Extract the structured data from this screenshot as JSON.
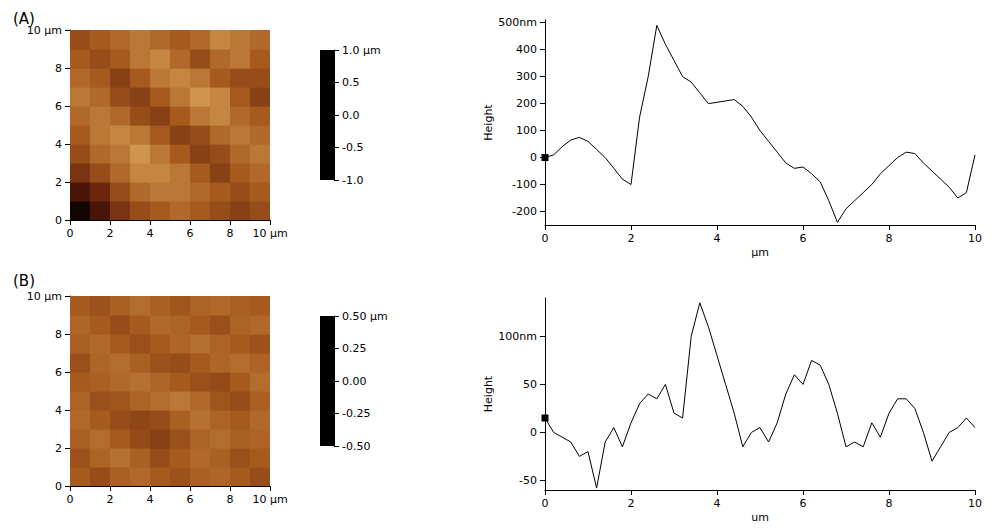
{
  "chart_data": [
    {
      "type": "heatmap",
      "title": "(A)",
      "x": [
        0,
        1,
        2,
        3,
        4,
        5,
        6,
        7,
        8,
        9,
        10
      ],
      "y": [
        0,
        1,
        2,
        3,
        4,
        5,
        6,
        7,
        8,
        9,
        10
      ],
      "values": [
        [
          -0.9,
          -0.6,
          -0.3,
          -0.1,
          0.0,
          0.1,
          0.0,
          -0.1,
          -0.2,
          -0.1
        ],
        [
          -0.6,
          -0.4,
          -0.1,
          0.1,
          0.2,
          0.2,
          0.1,
          0.0,
          -0.1,
          0.0
        ],
        [
          -0.3,
          -0.1,
          0.1,
          0.3,
          0.3,
          0.2,
          0.0,
          -0.2,
          0.0,
          0.1
        ],
        [
          -0.1,
          0.1,
          0.2,
          0.4,
          0.2,
          0.0,
          -0.2,
          -0.1,
          0.1,
          0.2
        ],
        [
          0.0,
          0.2,
          0.3,
          0.2,
          0.0,
          -0.2,
          -0.1,
          0.1,
          0.2,
          0.1
        ],
        [
          0.1,
          0.2,
          0.1,
          -0.1,
          -0.2,
          0.0,
          0.2,
          0.3,
          0.1,
          0.0
        ],
        [
          0.2,
          0.1,
          -0.1,
          -0.2,
          0.0,
          0.2,
          0.4,
          0.3,
          0.0,
          -0.2
        ],
        [
          0.1,
          0.0,
          -0.2,
          0.0,
          0.2,
          0.3,
          0.2,
          0.0,
          -0.1,
          -0.1
        ],
        [
          0.0,
          -0.1,
          0.0,
          0.2,
          0.3,
          0.1,
          -0.1,
          0.1,
          0.2,
          0.0
        ],
        [
          -0.1,
          0.0,
          0.1,
          0.2,
          0.1,
          0.0,
          0.1,
          0.3,
          0.2,
          0.1
        ]
      ],
      "xlim": [
        0,
        10
      ],
      "xticks": [
        0,
        2,
        4,
        6,
        8,
        {
          "value": 10,
          "label": "10 μm"
        }
      ],
      "ylim": [
        0,
        10
      ],
      "yticks": [
        0,
        2,
        4,
        6,
        8,
        {
          "value": 10,
          "label": "10 μm"
        }
      ],
      "colorbar": {
        "range": [
          -1,
          1
        ],
        "ticks": [
          {
            "value": -1,
            "label": "-1.0"
          },
          {
            "value": -0.5,
            "label": "-0.5"
          },
          {
            "value": 0,
            "label": "0.0"
          },
          {
            "value": 0.5,
            "label": "0.5"
          },
          {
            "value": 1,
            "label": "1.0 μm"
          }
        ]
      }
    },
    {
      "type": "line",
      "x": [
        0,
        0.2,
        0.4,
        0.6,
        0.8,
        1,
        1.2,
        1.4,
        1.6,
        1.8,
        2,
        2.2,
        2.4,
        2.6,
        2.8,
        3,
        3.2,
        3.4,
        3.6,
        3.8,
        4,
        4.2,
        4.4,
        4.6,
        4.8,
        5,
        5.2,
        5.4,
        5.6,
        5.8,
        6,
        6.2,
        6.4,
        6.6,
        6.8,
        7,
        7.2,
        7.4,
        7.6,
        7.8,
        8,
        8.2,
        8.4,
        8.6,
        8.8,
        9,
        9.2,
        9.4,
        9.6,
        9.8,
        10
      ],
      "values": [
        0,
        10,
        40,
        65,
        75,
        60,
        30,
        0,
        -40,
        -80,
        -100,
        150,
        300,
        490,
        420,
        360,
        300,
        280,
        240,
        200,
        205,
        210,
        215,
        190,
        150,
        100,
        60,
        20,
        -20,
        -40,
        -35,
        -60,
        -90,
        -160,
        -240,
        -190,
        -160,
        -130,
        -100,
        -60,
        -30,
        0,
        20,
        15,
        -20,
        -50,
        -80,
        -110,
        -150,
        -130,
        10
      ],
      "color": "#000000",
      "marker": "square",
      "line_style": "solid",
      "xlabel": "μm",
      "ylabel": "Height",
      "xlim": [
        0,
        10
      ],
      "xticks": [
        0,
        2,
        4,
        6,
        8,
        10
      ],
      "ylim": [
        -250,
        510
      ],
      "yticks": [
        -200,
        -100,
        0,
        100,
        200,
        300,
        400,
        {
          "value": 500,
          "label": "500nm"
        }
      ],
      "grid": false
    },
    {
      "type": "heatmap",
      "title": "(B)",
      "x": [
        0,
        1,
        2,
        3,
        4,
        5,
        6,
        7,
        8,
        9,
        10
      ],
      "y": [
        0,
        1,
        2,
        3,
        4,
        5,
        6,
        7,
        8,
        9,
        10
      ],
      "values": [
        [
          0.0,
          -0.05,
          0.02,
          0.05,
          0.0,
          -0.03,
          0.02,
          0.04,
          0.0,
          -0.05
        ],
        [
          -0.03,
          0.03,
          0.08,
          0.02,
          -0.05,
          0.0,
          0.05,
          0.02,
          -0.04,
          0.0
        ],
        [
          0.02,
          0.06,
          0.0,
          -0.06,
          -0.1,
          -0.04,
          0.03,
          0.06,
          0.02,
          0.03
        ],
        [
          0.05,
          0.0,
          -0.05,
          -0.08,
          -0.05,
          0.02,
          0.08,
          0.03,
          0.0,
          0.05
        ],
        [
          0.03,
          -0.04,
          -0.02,
          0.03,
          0.06,
          0.1,
          0.05,
          -0.02,
          -0.05,
          0.02
        ],
        [
          0.0,
          0.02,
          0.05,
          0.08,
          0.04,
          0.0,
          -0.04,
          -0.06,
          0.0,
          0.06
        ],
        [
          -0.04,
          0.04,
          0.06,
          0.02,
          -0.03,
          -0.05,
          0.0,
          0.04,
          0.06,
          0.03
        ],
        [
          0.02,
          0.05,
          0.0,
          -0.04,
          0.0,
          0.04,
          0.07,
          0.03,
          0.0,
          -0.03
        ],
        [
          0.04,
          0.0,
          -0.05,
          0.0,
          0.05,
          0.03,
          0.0,
          -0.04,
          0.03,
          0.05
        ],
        [
          0.0,
          -0.03,
          0.02,
          0.06,
          0.02,
          -0.02,
          0.03,
          0.05,
          0.02,
          0.0
        ]
      ],
      "xlim": [
        0,
        10
      ],
      "xticks": [
        0,
        2,
        4,
        6,
        8,
        {
          "value": 10,
          "label": "10 μm"
        }
      ],
      "ylim": [
        0,
        10
      ],
      "yticks": [
        0,
        2,
        4,
        6,
        8,
        {
          "value": 10,
          "label": "10 μm"
        }
      ],
      "colorbar": {
        "range": [
          -0.5,
          0.5
        ],
        "ticks": [
          {
            "value": -0.5,
            "label": "-0.50"
          },
          {
            "value": -0.25,
            "label": "-0.25"
          },
          {
            "value": 0,
            "label": "0.00"
          },
          {
            "value": 0.25,
            "label": "0.25"
          },
          {
            "value": 0.5,
            "label": "0.50 μm"
          }
        ]
      }
    },
    {
      "type": "line",
      "x": [
        0,
        0.2,
        0.4,
        0.6,
        0.8,
        1,
        1.2,
        1.4,
        1.6,
        1.8,
        2,
        2.2,
        2.4,
        2.6,
        2.8,
        3,
        3.2,
        3.4,
        3.6,
        3.8,
        4,
        4.2,
        4.4,
        4.6,
        4.8,
        5,
        5.2,
        5.4,
        5.6,
        5.8,
        6,
        6.2,
        6.4,
        6.6,
        6.8,
        7,
        7.2,
        7.4,
        7.6,
        7.8,
        8,
        8.2,
        8.4,
        8.6,
        8.8,
        9,
        9.2,
        9.4,
        9.6,
        9.8,
        10
      ],
      "values": [
        15,
        0,
        -5,
        -10,
        -25,
        -20,
        -58,
        -10,
        5,
        -15,
        10,
        30,
        40,
        35,
        50,
        20,
        15,
        100,
        135,
        110,
        80,
        50,
        20,
        -15,
        0,
        5,
        -10,
        10,
        40,
        60,
        50,
        75,
        70,
        50,
        20,
        -15,
        -10,
        -15,
        10,
        -5,
        20,
        35,
        35,
        25,
        0,
        -30,
        -15,
        0,
        5,
        15,
        5
      ],
      "color": "#000000",
      "marker": "square",
      "line_style": "solid",
      "xlabel": "um",
      "ylabel": "Height",
      "xlim": [
        0,
        10
      ],
      "xticks": [
        0,
        2,
        4,
        6,
        8,
        10
      ],
      "ylim": [
        -60,
        140
      ],
      "yticks": [
        -50,
        0,
        50,
        {
          "value": 100,
          "label": "100nm"
        }
      ],
      "grid": false
    }
  ]
}
